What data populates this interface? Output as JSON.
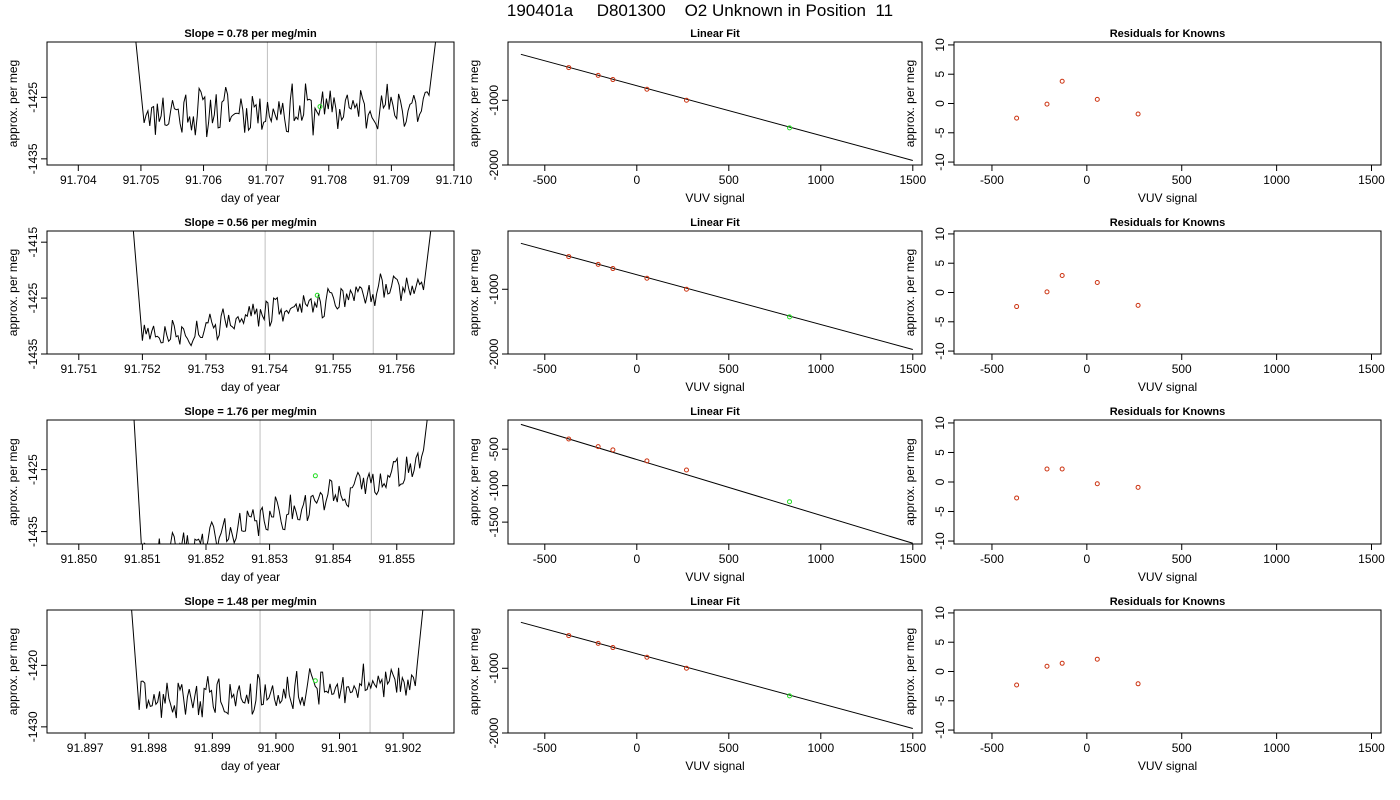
{
  "figure_title": "190401a     D801300    O2 Unknown in Position  11",
  "colors": {
    "trace": "#000000",
    "vline": "#bfbfbf",
    "known": "#cc3311",
    "unknown": "#22dd22",
    "fit": "#000000"
  },
  "chart_data": [
    {
      "type": "line",
      "title": "Slope =  0.78  per meg/min",
      "xlabel": "day of year",
      "ylabel": "approx. per meg",
      "xlim": [
        91.7035,
        91.71
      ],
      "ylim": [
        -1436,
        -1416
      ],
      "x_ticks": [
        "91.704",
        "91.705",
        "91.706",
        "91.707",
        "91.708",
        "91.709",
        "91.710"
      ],
      "y_ticks": [
        "-1425",
        "-1435"
      ],
      "vlines": [
        91.70702,
        91.70876
      ],
      "trace": {
        "x_start": 91.70505,
        "x_end": 91.7096,
        "level_start": -1427.5,
        "level_end": -1426.5,
        "amp": 3.2,
        "seed": 11,
        "left_spike": [
          91.7048,
          -1404
        ],
        "right_spike": [
          91.70985,
          -1404
        ]
      },
      "marker": {
        "x": 91.70786,
        "y": -1426.5
      }
    },
    {
      "type": "scatter",
      "title": "Linear Fit",
      "xlabel": "VUV signal",
      "ylabel": "approx. per meg",
      "xlim": [
        -700,
        1550
      ],
      "ylim": [
        -2000,
        -100
      ],
      "x_ticks": [
        "-500",
        "0",
        "500",
        "1000",
        "1500"
      ],
      "y_ticks": [
        "-1000",
        "-2000"
      ],
      "fit_line": {
        "x": [
          -630,
          1500
        ],
        "y": [
          -290,
          -1930
        ]
      },
      "knowns": {
        "x": [
          -370,
          -210,
          -130,
          55,
          270
        ],
        "y": [
          -495,
          -615,
          -680,
          -830,
          -1000
        ]
      },
      "unknown": {
        "x": 830,
        "y": -1426
      }
    },
    {
      "type": "scatter",
      "title": "Residuals for Knowns",
      "xlabel": "VUV signal",
      "ylabel": "",
      "xlim": [
        -700,
        1550
      ],
      "ylim": [
        -10.5,
        10.5
      ],
      "x_ticks": [
        "-500",
        "0",
        "500",
        "1000",
        "1500"
      ],
      "y_ticks": [
        "-10",
        "-5",
        "0",
        "5",
        "10"
      ],
      "knowns": {
        "x": [
          -370,
          -210,
          -130,
          55,
          270
        ],
        "y": [
          -2.5,
          -0.1,
          3.8,
          0.7,
          -1.8
        ]
      }
    },
    {
      "type": "line",
      "title": "Slope =  0.56  per meg/min",
      "xlabel": "day of year",
      "ylabel": "approx. per meg",
      "xlim": [
        91.7505,
        91.7569
      ],
      "ylim": [
        -1435,
        -1413
      ],
      "x_ticks": [
        "91.751",
        "91.752",
        "91.753",
        "91.754",
        "91.755",
        "91.756"
      ],
      "y_ticks": [
        "-1415",
        "-1425",
        "-1435"
      ],
      "vlines": [
        91.75393,
        91.75563
      ],
      "trace": {
        "x_start": 91.752,
        "x_end": 91.75642,
        "level_start": -1432,
        "level_end": -1422,
        "amp": 2.2,
        "seed": 27,
        "left_spike": [
          91.7518,
          -1405
        ],
        "right_spike": [
          91.75662,
          -1405
        ],
        "step": [
          91.753,
          -1427.5
        ]
      },
      "marker": {
        "x": 91.75475,
        "y": -1424.5
      }
    },
    {
      "type": "scatter",
      "title": "Linear Fit",
      "xlabel": "VUV signal",
      "ylabel": "approx. per meg",
      "xlim": [
        -700,
        1550
      ],
      "ylim": [
        -2000,
        -100
      ],
      "x_ticks": [
        "-500",
        "0",
        "500",
        "1000",
        "1500"
      ],
      "y_ticks": [
        "-1000",
        "-2000"
      ],
      "fit_line": {
        "x": [
          -630,
          1500
        ],
        "y": [
          -290,
          -1930
        ]
      },
      "knowns": {
        "x": [
          -370,
          -210,
          -130,
          55,
          270
        ],
        "y": [
          -495,
          -615,
          -680,
          -830,
          -1000
        ]
      },
      "unknown": {
        "x": 830,
        "y": -1426
      }
    },
    {
      "type": "scatter",
      "title": "Residuals for Knowns",
      "xlabel": "VUV signal",
      "ylabel": "",
      "xlim": [
        -700,
        1550
      ],
      "ylim": [
        -10.5,
        10.5
      ],
      "x_ticks": [
        "-500",
        "0",
        "500",
        "1000",
        "1500"
      ],
      "y_ticks": [
        "-10",
        "-5",
        "0",
        "5",
        "10"
      ],
      "knowns": {
        "x": [
          -370,
          -210,
          -130,
          55,
          270
        ],
        "y": [
          -2.4,
          0.1,
          2.9,
          1.7,
          -2.2
        ]
      }
    },
    {
      "type": "line",
      "title": "Slope =  1.76  per meg/min",
      "xlabel": "day of year",
      "ylabel": "approx. per meg",
      "xlim": [
        91.8495,
        91.8559
      ],
      "ylim": [
        -1437,
        -1417
      ],
      "x_ticks": [
        "91.850",
        "91.851",
        "91.852",
        "91.853",
        "91.854",
        "91.855"
      ],
      "y_ticks": [
        "-1425",
        "-1435"
      ],
      "vlines": [
        91.85285,
        91.8546
      ],
      "trace": {
        "x_start": 91.851,
        "x_end": 91.85542,
        "level_start": -1440,
        "level_end": -1424,
        "amp": 2.3,
        "seed": 41,
        "left_spike": [
          91.8508,
          -1405
        ],
        "right_spike": [
          91.85562,
          -1405
        ],
        "dip": [
          91.851,
          -1440
        ]
      },
      "marker": {
        "x": 91.85372,
        "y": -1426
      }
    },
    {
      "type": "scatter",
      "title": "Linear Fit",
      "xlabel": "VUV signal",
      "ylabel": "approx. per meg",
      "xlim": [
        -700,
        1550
      ],
      "ylim": [
        -1800,
        -100
      ],
      "x_ticks": [
        "-500",
        "0",
        "500",
        "1000",
        "1500"
      ],
      "y_ticks": [
        "-500",
        "-1000",
        "-1500"
      ],
      "fit_line": {
        "x": [
          -630,
          1500
        ],
        "y": [
          -160,
          -1790
        ]
      },
      "knowns": {
        "x": [
          -370,
          -210,
          -130,
          55,
          270
        ],
        "y": [
          -360,
          -465,
          -510,
          -660,
          -785
        ]
      },
      "unknown": {
        "x": 830,
        "y": -1220
      }
    },
    {
      "type": "scatter",
      "title": "Residuals for Knowns",
      "xlabel": "VUV signal",
      "ylabel": "",
      "xlim": [
        -700,
        1550
      ],
      "ylim": [
        -10.5,
        10.5
      ],
      "x_ticks": [
        "-500",
        "0",
        "500",
        "1000",
        "1500"
      ],
      "y_ticks": [
        "-10",
        "-5",
        "0",
        "5",
        "10"
      ],
      "knowns": {
        "x": [
          -370,
          -210,
          -130,
          55,
          270
        ],
        "y": [
          -2.7,
          2.2,
          2.2,
          -0.3,
          -0.9
        ]
      }
    },
    {
      "type": "line",
      "title": "Slope =  1.48  per meg/min",
      "xlabel": "day of year",
      "ylabel": "approx. per meg",
      "xlim": [
        91.8964,
        91.9028
      ],
      "ylim": [
        -1431,
        -1411
      ],
      "x_ticks": [
        "91.897",
        "91.898",
        "91.899",
        "91.900",
        "91.901",
        "91.902"
      ],
      "y_ticks": [
        "-1420",
        "-1430"
      ],
      "vlines": [
        91.89975,
        91.90148
      ],
      "trace": {
        "x_start": 91.89785,
        "x_end": 91.90222,
        "level_start": -1426,
        "level_end": -1422.5,
        "amp": 2.6,
        "seed": 63,
        "left_spike": [
          91.89765,
          -1400
        ],
        "right_spike": [
          91.90242,
          -1400
        ]
      },
      "marker": {
        "x": 91.90062,
        "y": -1422.5
      }
    },
    {
      "type": "scatter",
      "title": "Linear Fit",
      "xlabel": "VUV signal",
      "ylabel": "approx. per meg",
      "xlim": [
        -700,
        1550
      ],
      "ylim": [
        -2000,
        -100
      ],
      "x_ticks": [
        "-500",
        "0",
        "500",
        "1000",
        "1500"
      ],
      "y_ticks": [
        "-1000",
        "-2000"
      ],
      "fit_line": {
        "x": [
          -630,
          1500
        ],
        "y": [
          -290,
          -1930
        ]
      },
      "knowns": {
        "x": [
          -370,
          -210,
          -130,
          55,
          270
        ],
        "y": [
          -495,
          -615,
          -680,
          -830,
          -1000
        ]
      },
      "unknown": {
        "x": 830,
        "y": -1426
      }
    },
    {
      "type": "scatter",
      "title": "Residuals for Knowns",
      "xlabel": "VUV signal",
      "ylabel": "",
      "xlim": [
        -700,
        1550
      ],
      "ylim": [
        -10.5,
        10.5
      ],
      "x_ticks": [
        "-500",
        "0",
        "500",
        "1000",
        "1500"
      ],
      "y_ticks": [
        "-10",
        "-5",
        "0",
        "5",
        "10"
      ],
      "knowns": {
        "x": [
          -370,
          -210,
          -130,
          55,
          270
        ],
        "y": [
          -2.3,
          0.9,
          1.4,
          2.1,
          -2.1
        ]
      }
    }
  ]
}
